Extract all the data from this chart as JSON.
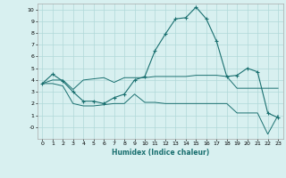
{
  "xlabel": "Humidex (Indice chaleur)",
  "bg_color": "#d8f0f0",
  "grid_color": "#b0d8d8",
  "line_color": "#1a7070",
  "xlim": [
    -0.5,
    23.5
  ],
  "ylim": [
    -1.0,
    10.5
  ],
  "xticks": [
    0,
    1,
    2,
    3,
    4,
    5,
    6,
    7,
    8,
    9,
    10,
    11,
    12,
    13,
    14,
    15,
    16,
    17,
    18,
    19,
    20,
    21,
    22,
    23
  ],
  "yticks": [
    0,
    1,
    2,
    3,
    4,
    5,
    6,
    7,
    8,
    9,
    10
  ],
  "ytick_labels": [
    "-0",
    "1",
    "2",
    "3",
    "4",
    "5",
    "6",
    "7",
    "8",
    "9",
    "10"
  ],
  "series_main": [
    3.7,
    4.5,
    3.9,
    3.0,
    2.2,
    2.2,
    2.0,
    2.5,
    2.8,
    4.0,
    4.3,
    6.5,
    7.9,
    9.2,
    9.3,
    10.2,
    9.2,
    7.3,
    4.3,
    4.4,
    5.0,
    4.7,
    1.2,
    0.8
  ],
  "series_upper": [
    3.7,
    4.0,
    4.0,
    3.2,
    4.0,
    4.1,
    4.2,
    3.8,
    4.2,
    4.2,
    4.2,
    4.3,
    4.3,
    4.3,
    4.3,
    4.4,
    4.4,
    4.4,
    4.3,
    3.3,
    3.3,
    3.3,
    3.3,
    3.3
  ],
  "series_lower": [
    3.7,
    3.7,
    3.5,
    2.0,
    1.8,
    1.8,
    1.9,
    2.0,
    2.0,
    2.8,
    2.1,
    2.1,
    2.0,
    2.0,
    2.0,
    2.0,
    2.0,
    2.0,
    2.0,
    1.2,
    1.2,
    1.2,
    -0.6,
    1.0
  ]
}
